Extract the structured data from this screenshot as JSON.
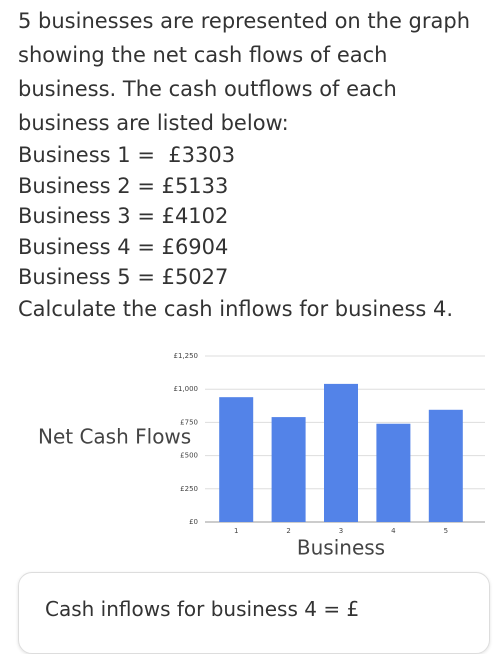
{
  "question": {
    "intro": "5 businesses are represented on the graph showing the net cash flows of each business. The cash outflows of each business are listed below:",
    "items": [
      "Business 1 =  £3303",
      "Business 2 = £5133",
      "Business 3 = £4102",
      "Business 4 = £6904",
      "Business 5 = £5027"
    ],
    "task": "Calculate the cash inflows for business 4."
  },
  "chart_data": {
    "type": "bar",
    "ylabel": "Net Cash Flows",
    "xlabel": "Business",
    "categories": [
      "1",
      "2",
      "3",
      "4",
      "5"
    ],
    "values": [
      940,
      790,
      1040,
      740,
      845
    ],
    "color": "#5383e8",
    "ylim": [
      0,
      1250
    ],
    "yticks": [
      {
        "value": 0,
        "label": "£0"
      },
      {
        "value": 250,
        "label": "£250"
      },
      {
        "value": 500,
        "label": "£500"
      },
      {
        "value": 750,
        "label": "£750"
      },
      {
        "value": 1000,
        "label": "£1,000"
      },
      {
        "value": 1250,
        "label": "£1,250"
      }
    ],
    "grid": true
  },
  "answer": {
    "prompt": "Cash inflows for business 4 = £"
  }
}
